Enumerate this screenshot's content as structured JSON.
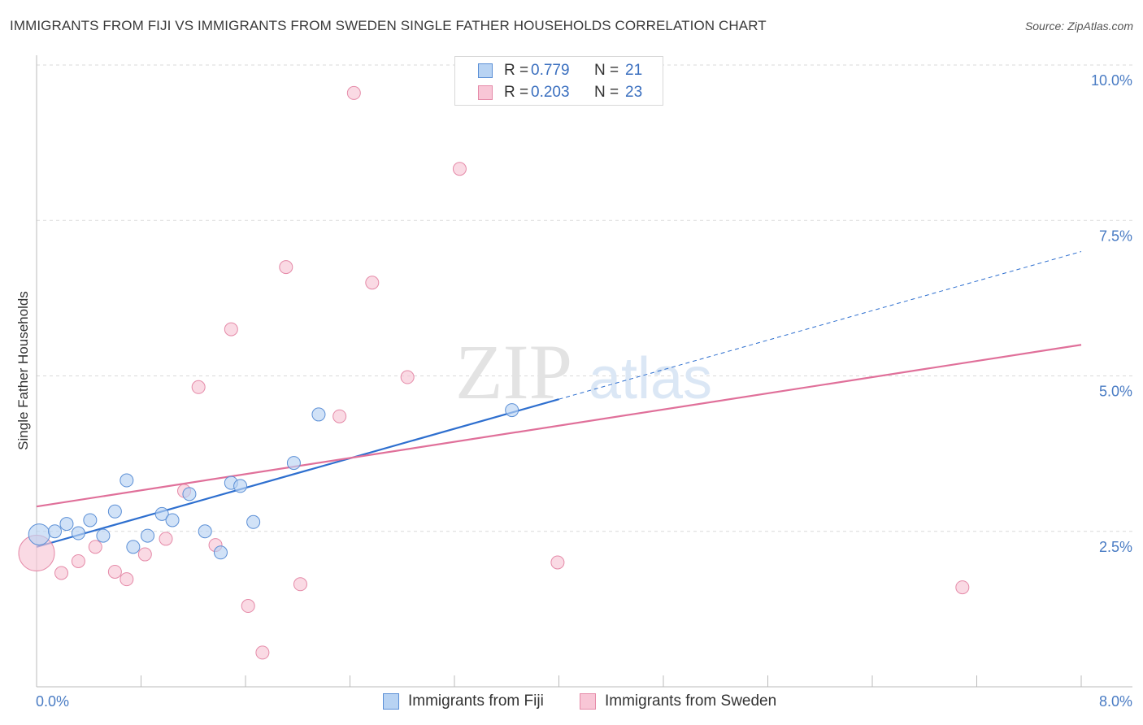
{
  "title": "IMMIGRANTS FROM FIJI VS IMMIGRANTS FROM SWEDEN SINGLE FATHER HOUSEHOLDS CORRELATION CHART",
  "source": "Source: ZipAtlas.com",
  "watermark": {
    "zip": "ZIP",
    "atlas": "atlas"
  },
  "legend": {
    "r_label": "R =",
    "n_label": "N =",
    "series": [
      {
        "name": "Immigrants from Fiji",
        "r": "0.779",
        "n": "21"
      },
      {
        "name": "Immigrants from Sweden",
        "r": "0.203",
        "n": "23"
      }
    ]
  },
  "colors": {
    "fiji_fill": "#b8d3f3",
    "fiji_stroke": "#5b8fd6",
    "fiji_line": "#2e6fcf",
    "sweden_fill": "#f8c6d6",
    "sweden_stroke": "#e58aa8",
    "sweden_line": "#e0709a",
    "axis_text": "#4a7cc4",
    "grid": "#d9d9d9"
  },
  "chart_data": {
    "type": "scatter",
    "title": "IMMIGRANTS FROM FIJI VS IMMIGRANTS FROM SWEDEN SINGLE FATHER HOUSEHOLDS CORRELATION CHART",
    "xlabel": "",
    "ylabel": "Single Father Households",
    "xlim": [
      0,
      8
    ],
    "ylim": [
      0,
      10
    ],
    "x_tick_labels": [
      "0.0%",
      "8.0%"
    ],
    "y_ticks": [
      2.5,
      5.0,
      7.5,
      10.0
    ],
    "y_tick_labels": [
      "2.5%",
      "5.0%",
      "7.5%",
      "10.0%"
    ],
    "series": [
      {
        "name": "Immigrants from Fiji",
        "points": [
          {
            "x": 0.02,
            "y": 2.45,
            "big": true
          },
          {
            "x": 0.14,
            "y": 2.5
          },
          {
            "x": 0.23,
            "y": 2.62
          },
          {
            "x": 0.32,
            "y": 2.47
          },
          {
            "x": 0.41,
            "y": 2.68
          },
          {
            "x": 0.51,
            "y": 2.43
          },
          {
            "x": 0.6,
            "y": 2.82
          },
          {
            "x": 0.69,
            "y": 3.32
          },
          {
            "x": 0.74,
            "y": 2.25
          },
          {
            "x": 0.85,
            "y": 2.43
          },
          {
            "x": 0.96,
            "y": 2.78
          },
          {
            "x": 1.04,
            "y": 2.68
          },
          {
            "x": 1.17,
            "y": 3.1
          },
          {
            "x": 1.29,
            "y": 2.5
          },
          {
            "x": 1.41,
            "y": 2.16
          },
          {
            "x": 1.49,
            "y": 3.28
          },
          {
            "x": 1.56,
            "y": 3.23
          },
          {
            "x": 1.66,
            "y": 2.65
          },
          {
            "x": 1.97,
            "y": 3.6
          },
          {
            "x": 2.16,
            "y": 4.38
          },
          {
            "x": 3.64,
            "y": 4.45
          }
        ],
        "trend": {
          "x0": 0,
          "y0": 2.25,
          "x_solid_end": 4.0,
          "x1": 8.0,
          "y1": 7.0
        }
      },
      {
        "name": "Immigrants from Sweden",
        "points": [
          {
            "x": 0.0,
            "y": 2.15,
            "big": true
          },
          {
            "x": 0.19,
            "y": 1.83
          },
          {
            "x": 0.32,
            "y": 2.02
          },
          {
            "x": 0.45,
            "y": 2.25
          },
          {
            "x": 0.6,
            "y": 1.85
          },
          {
            "x": 0.69,
            "y": 1.73
          },
          {
            "x": 0.83,
            "y": 2.13
          },
          {
            "x": 0.99,
            "y": 2.38
          },
          {
            "x": 1.13,
            "y": 3.15
          },
          {
            "x": 1.24,
            "y": 4.82
          },
          {
            "x": 1.37,
            "y": 2.28
          },
          {
            "x": 1.49,
            "y": 5.75
          },
          {
            "x": 1.62,
            "y": 1.3
          },
          {
            "x": 1.73,
            "y": 0.55
          },
          {
            "x": 1.91,
            "y": 6.75
          },
          {
            "x": 2.02,
            "y": 1.65
          },
          {
            "x": 2.32,
            "y": 4.35
          },
          {
            "x": 2.43,
            "y": 9.55
          },
          {
            "x": 2.57,
            "y": 6.5
          },
          {
            "x": 2.84,
            "y": 4.98
          },
          {
            "x": 3.24,
            "y": 8.33
          },
          {
            "x": 3.99,
            "y": 2.0
          },
          {
            "x": 7.09,
            "y": 1.6
          }
        ],
        "trend": {
          "x0": 0,
          "y0": 2.9,
          "x1": 8.0,
          "y1": 5.5
        }
      }
    ]
  }
}
